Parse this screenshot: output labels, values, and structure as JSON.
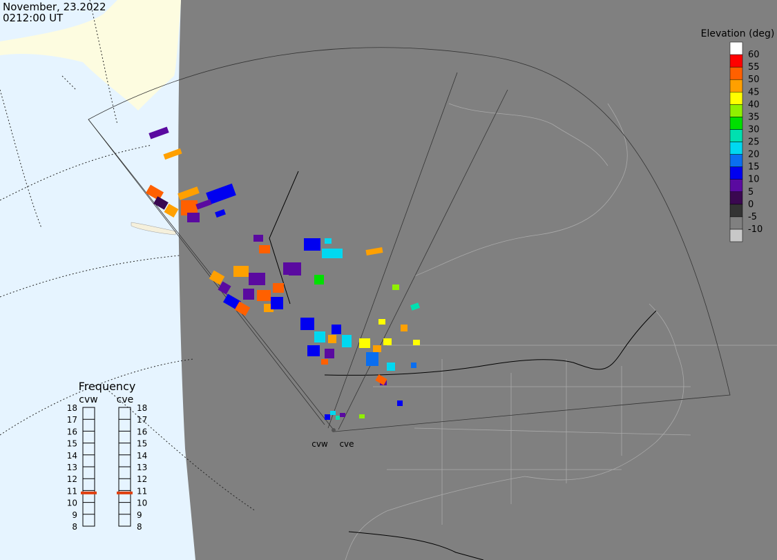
{
  "header": {
    "date": "November, 23.2022",
    "time": "0212:00 UT"
  },
  "legend": {
    "title": "Elevation (deg)",
    "ticks": [
      -10,
      -5,
      0,
      5,
      10,
      15,
      20,
      25,
      30,
      35,
      40,
      45,
      50,
      55,
      60
    ],
    "colors": [
      "#c8c8c8",
      "#808080",
      "#333333",
      "#3a0850",
      "#5a0aa0",
      "#0000f0",
      "#0a6ef0",
      "#00d8f0",
      "#00e0b0",
      "#00e000",
      "#90f000",
      "#ffff00",
      "#ffa000",
      "#ff6000",
      "#ff0000",
      "#ffffff"
    ]
  },
  "frequency": {
    "title": "Frequency",
    "ticks": [
      8,
      9,
      10,
      11,
      12,
      13,
      14,
      15,
      16,
      17,
      18
    ],
    "marker_color": "#e04010",
    "radars": [
      {
        "name": "cvw",
        "value": 10.8
      },
      {
        "name": "cve",
        "value": 10.8
      }
    ]
  },
  "cells": [
    7,
    48,
    51,
    3,
    49,
    46,
    52,
    9,
    14,
    8,
    13,
    49,
    7,
    12,
    50,
    48,
    9,
    50,
    8,
    47,
    51,
    9,
    14,
    6,
    51,
    33,
    37,
    13,
    20,
    22,
    8,
    13,
    21,
    14,
    9,
    47,
    40,
    27,
    45,
    16,
    14,
    48,
    50,
    22,
    40,
    46,
    44,
    21,
    8,
    16,
    50,
    14,
    12,
    20,
    27,
    7,
    35,
    44
  ]
}
